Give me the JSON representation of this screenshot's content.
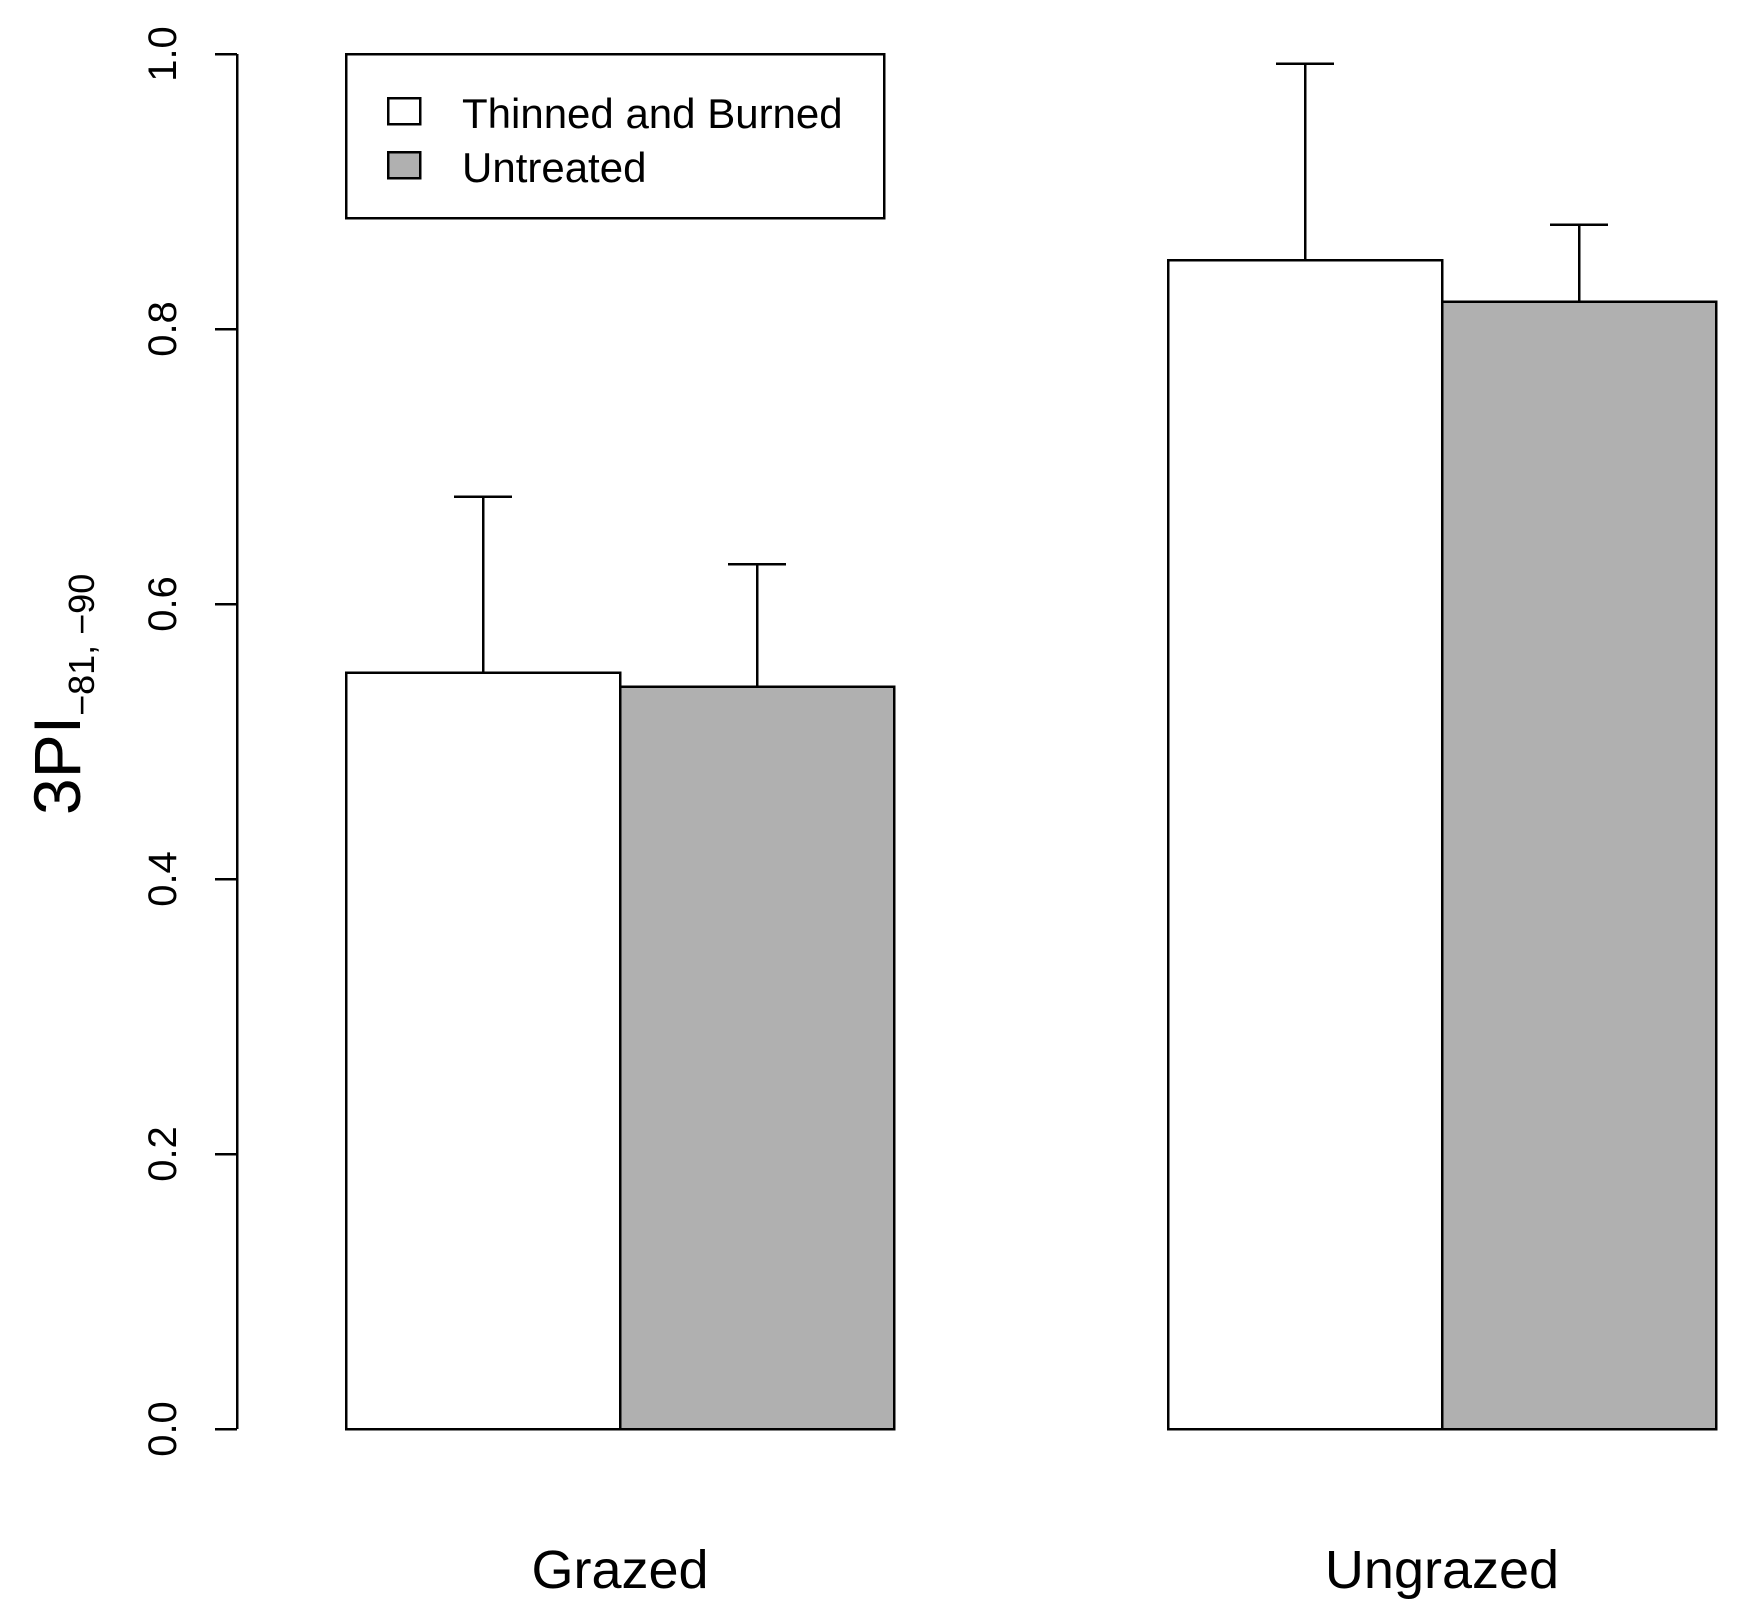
{
  "chart_data": {
    "type": "bar",
    "title": "",
    "xlabel": "",
    "ylabel": {
      "main": "3PI",
      "subscript": "−81, −90"
    },
    "ylim": [
      0,
      1.0
    ],
    "yticks": [
      0.0,
      0.2,
      0.4,
      0.6,
      0.8,
      1.0
    ],
    "ytick_labels": [
      "0.0",
      "0.2",
      "0.4",
      "0.6",
      "0.8",
      "1.0"
    ],
    "categories": [
      "Grazed",
      "Ungrazed"
    ],
    "series": [
      {
        "name": "Thinned and Burned",
        "color": "#ffffff",
        "values": [
          0.55,
          0.85
        ],
        "error_upper": [
          0.678,
          0.993
        ]
      },
      {
        "name": "Untreated",
        "color": "#b0b0b0",
        "values": [
          0.54,
          0.82
        ],
        "error_upper": [
          0.629,
          0.876
        ]
      }
    ],
    "legend": {
      "position": "top-left",
      "entries": [
        "Thinned and Burned",
        "Untreated"
      ]
    },
    "grid": false
  }
}
